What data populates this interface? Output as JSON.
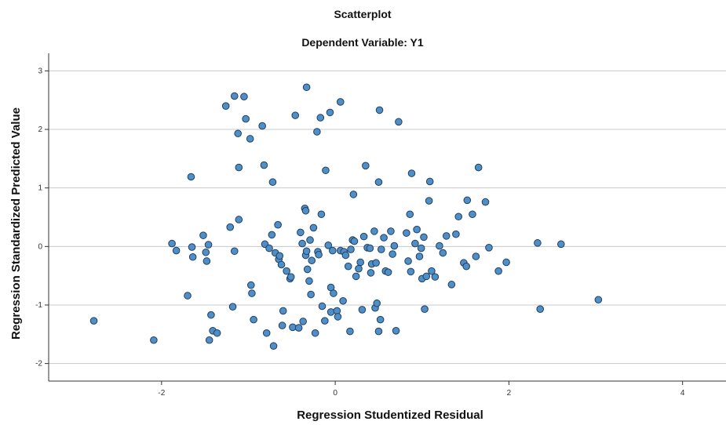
{
  "chart_data": {
    "type": "scatter",
    "title": "Scatterplot",
    "subtitle": "Dependent Variable: Y1",
    "xlabel": "Regression Studentized Residual",
    "ylabel": "Regression Standardized Predicted Value",
    "xlim": [
      -3.3,
      4.5
    ],
    "ylim": [
      -2.3,
      3.3
    ],
    "x_ticks": [
      -2,
      0,
      2,
      4
    ],
    "y_ticks": [
      -2,
      -1,
      0,
      1,
      2,
      3
    ],
    "grid": "horizontal",
    "colors": {
      "point_fill": "#4f8fc6",
      "point_stroke": "#1f3f66",
      "grid": "#c8c8c8",
      "axis": "#333333"
    },
    "points": [
      [
        -2.78,
        -1.27
      ],
      [
        -2.09,
        -1.6
      ],
      [
        -1.88,
        0.05
      ],
      [
        -1.83,
        -0.07
      ],
      [
        -1.7,
        -0.84
      ],
      [
        -1.66,
        1.19
      ],
      [
        -1.64,
        -0.18
      ],
      [
        -1.65,
        -0.01
      ],
      [
        -1.52,
        0.19
      ],
      [
        -1.49,
        -0.1
      ],
      [
        -1.48,
        -0.25
      ],
      [
        -1.46,
        0.03
      ],
      [
        -1.45,
        -1.6
      ],
      [
        -1.43,
        -1.17
      ],
      [
        -1.41,
        -1.44
      ],
      [
        -1.36,
        -1.48
      ],
      [
        -1.26,
        2.4
      ],
      [
        -1.21,
        0.33
      ],
      [
        -1.18,
        -1.03
      ],
      [
        -1.16,
        2.57
      ],
      [
        -1.16,
        -0.08
      ],
      [
        -1.11,
        0.46
      ],
      [
        -1.12,
        1.93
      ],
      [
        -1.11,
        1.35
      ],
      [
        -1.05,
        2.56
      ],
      [
        -1.03,
        2.18
      ],
      [
        -0.98,
        1.84
      ],
      [
        -0.97,
        -0.66
      ],
      [
        -0.96,
        -0.8
      ],
      [
        -0.94,
        -1.25
      ],
      [
        -0.84,
        2.06
      ],
      [
        -0.82,
        1.39
      ],
      [
        -0.81,
        0.04
      ],
      [
        -0.79,
        -1.48
      ],
      [
        -0.76,
        -0.03
      ],
      [
        -0.73,
        0.2
      ],
      [
        -0.71,
        -1.7
      ],
      [
        -0.72,
        1.1
      ],
      [
        -0.69,
        -0.11
      ],
      [
        -0.66,
        0.37
      ],
      [
        -0.65,
        -0.22
      ],
      [
        -0.64,
        -0.16
      ],
      [
        -0.62,
        -0.31
      ],
      [
        -0.61,
        -1.35
      ],
      [
        -0.6,
        -1.1
      ],
      [
        -0.56,
        -0.42
      ],
      [
        -0.52,
        -0.55
      ],
      [
        -0.51,
        -0.52
      ],
      [
        -0.49,
        -1.38
      ],
      [
        -0.46,
        2.24
      ],
      [
        -0.42,
        -1.39
      ],
      [
        -0.4,
        0.24
      ],
      [
        -0.38,
        0.05
      ],
      [
        -0.37,
        -1.28
      ],
      [
        -0.35,
        0.65
      ],
      [
        -0.34,
        0.61
      ],
      [
        -0.34,
        -0.15
      ],
      [
        -0.33,
        2.72
      ],
      [
        -0.33,
        -0.08
      ],
      [
        -0.32,
        -0.39
      ],
      [
        -0.3,
        -0.59
      ],
      [
        -0.29,
        0.11
      ],
      [
        -0.28,
        -0.82
      ],
      [
        -0.27,
        -0.24
      ],
      [
        -0.25,
        0.32
      ],
      [
        -0.23,
        -1.48
      ],
      [
        -0.21,
        1.96
      ],
      [
        -0.2,
        -0.09
      ],
      [
        -0.19,
        -0.14
      ],
      [
        -0.17,
        2.2
      ],
      [
        -0.16,
        0.55
      ],
      [
        -0.15,
        -1.02
      ],
      [
        -0.12,
        -1.27
      ],
      [
        -0.11,
        1.3
      ],
      [
        -0.08,
        0.02
      ],
      [
        -0.06,
        2.29
      ],
      [
        -0.05,
        -0.7
      ],
      [
        -0.05,
        -1.12
      ],
      [
        -0.03,
        -0.07
      ],
      [
        -0.02,
        -0.8
      ],
      [
        0.02,
        -1.1
      ],
      [
        0.03,
        -1.2
      ],
      [
        0.06,
        2.47
      ],
      [
        0.06,
        -0.07
      ],
      [
        0.09,
        -0.93
      ],
      [
        0.1,
        -0.09
      ],
      [
        0.12,
        -0.15
      ],
      [
        0.15,
        -0.34
      ],
      [
        0.17,
        -1.45
      ],
      [
        0.18,
        -0.05
      ],
      [
        0.2,
        0.11
      ],
      [
        0.21,
        0.89
      ],
      [
        0.22,
        0.09
      ],
      [
        0.24,
        -0.51
      ],
      [
        0.27,
        -0.38
      ],
      [
        0.29,
        -0.27
      ],
      [
        0.31,
        -1.08
      ],
      [
        0.33,
        0.17
      ],
      [
        0.35,
        1.38
      ],
      [
        0.37,
        -0.02
      ],
      [
        0.4,
        -0.03
      ],
      [
        0.41,
        -0.45
      ],
      [
        0.42,
        -0.3
      ],
      [
        0.45,
        0.26
      ],
      [
        0.46,
        -1.05
      ],
      [
        0.47,
        -0.28
      ],
      [
        0.48,
        -0.97
      ],
      [
        0.5,
        -1.45
      ],
      [
        0.5,
        1.1
      ],
      [
        0.51,
        2.33
      ],
      [
        0.52,
        -1.25
      ],
      [
        0.53,
        -0.05
      ],
      [
        0.56,
        0.15
      ],
      [
        0.58,
        -0.42
      ],
      [
        0.61,
        -0.44
      ],
      [
        0.64,
        0.26
      ],
      [
        0.66,
        -0.13
      ],
      [
        0.68,
        0.01
      ],
      [
        0.7,
        -1.44
      ],
      [
        0.73,
        2.13
      ],
      [
        0.82,
        0.23
      ],
      [
        0.84,
        -0.25
      ],
      [
        0.86,
        0.55
      ],
      [
        0.87,
        -0.43
      ],
      [
        0.88,
        1.25
      ],
      [
        0.92,
        0.05
      ],
      [
        0.94,
        0.29
      ],
      [
        0.97,
        -0.17
      ],
      [
        0.99,
        -0.03
      ],
      [
        1.0,
        -0.55
      ],
      [
        1.02,
        0.16
      ],
      [
        1.03,
        -1.07
      ],
      [
        1.05,
        -0.51
      ],
      [
        1.08,
        0.78
      ],
      [
        1.09,
        1.11
      ],
      [
        1.11,
        -0.42
      ],
      [
        1.15,
        -0.52
      ],
      [
        1.2,
        0.01
      ],
      [
        1.24,
        -0.11
      ],
      [
        1.28,
        0.18
      ],
      [
        1.34,
        -0.65
      ],
      [
        1.39,
        0.21
      ],
      [
        1.42,
        0.51
      ],
      [
        1.48,
        -0.28
      ],
      [
        1.51,
        -0.34
      ],
      [
        1.52,
        0.79
      ],
      [
        1.58,
        0.55
      ],
      [
        1.62,
        -0.17
      ],
      [
        1.65,
        1.35
      ],
      [
        1.73,
        0.76
      ],
      [
        1.77,
        -0.02
      ],
      [
        1.88,
        -0.42
      ],
      [
        1.97,
        -0.27
      ],
      [
        2.33,
        0.06
      ],
      [
        2.36,
        -1.07
      ],
      [
        2.6,
        0.04
      ],
      [
        3.03,
        -0.91
      ]
    ]
  }
}
